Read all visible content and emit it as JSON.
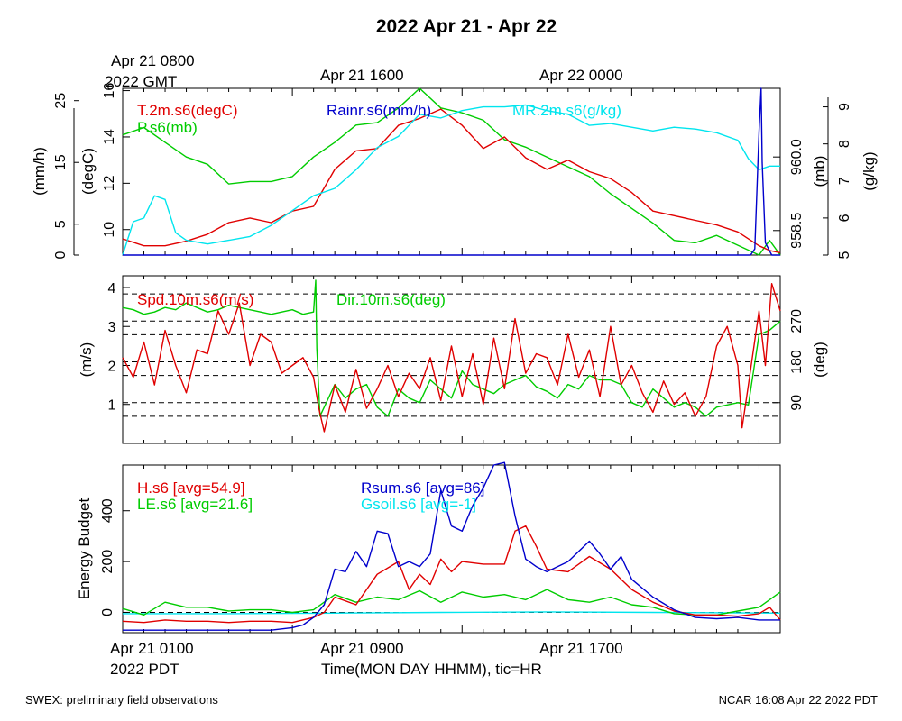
{
  "figure": {
    "title": "2022 Apr 21 - Apr 22",
    "top_time_labels": [
      {
        "line1": "Apr 21 0800",
        "line2": "2022 GMT"
      },
      {
        "line1": "Apr 21 1600",
        "line2": ""
      },
      {
        "line1": "Apr 22 0000",
        "line2": ""
      }
    ],
    "bottom_time_labels": [
      {
        "line1": "Apr 21 0100",
        "line2": "2022 PDT"
      },
      {
        "line1": "Apr 21 0900",
        "line2": ""
      },
      {
        "line1": "Apr 21 1700",
        "line2": ""
      }
    ],
    "xlabel": "Time(MON DAY HHMM), tic=HR",
    "footer_left": "SWEX: preliminary field observations",
    "footer_right": "NCAR 16:08 Apr 22 2022 PDT"
  },
  "chart_data": [
    {
      "type": "line",
      "panel": "state",
      "x_unit": "hours since Apr 21 0100 PDT",
      "xlim": [
        0,
        31
      ],
      "grid": false,
      "axes": {
        "left_outer": {
          "label": "(mm/h)",
          "ticks": [
            0,
            5,
            15,
            25
          ],
          "range": [
            0,
            27
          ]
        },
        "left_inner": {
          "label": "(degC)",
          "ticks": [
            10,
            12,
            14,
            16
          ],
          "range": [
            8.9,
            16.1
          ]
        },
        "right_inner": {
          "label": "(mb)",
          "ticks": [
            "958.5",
            "960.0"
          ],
          "range": [
            958.0,
            961.4
          ]
        },
        "right_outer": {
          "label": "(g/kg)",
          "ticks": [
            5,
            6,
            7,
            8,
            9
          ],
          "range": [
            5.0,
            9.5
          ]
        }
      },
      "series": [
        {
          "name": "T.2m.s6(degC)",
          "axis": "left_inner",
          "color": "#e00000",
          "x": [
            0,
            1,
            2,
            3,
            4,
            5,
            6,
            7,
            8,
            9,
            10,
            11,
            12,
            13,
            14,
            15,
            16,
            17,
            18,
            19,
            20,
            21,
            22,
            23,
            24,
            25,
            26,
            27,
            28,
            29,
            30,
            30.5,
            31
          ],
          "y": [
            9.6,
            9.3,
            9.3,
            9.5,
            9.8,
            10.3,
            10.5,
            10.3,
            10.8,
            11,
            12.6,
            13.4,
            13.5,
            14.5,
            14.8,
            15.2,
            14.5,
            13.5,
            14,
            13.1,
            12.6,
            13,
            12.5,
            12.2,
            11.6,
            10.8,
            10.6,
            10.4,
            10.2,
            9.9,
            9.3,
            9.1,
            9
          ]
        },
        {
          "name": "P.s6(mb)",
          "axis": "right_inner",
          "color": "#00cc00",
          "x": [
            0,
            1,
            2,
            3,
            4,
            5,
            6,
            7,
            8,
            9,
            10,
            11,
            12,
            13,
            14,
            15,
            16,
            17,
            18,
            19,
            20,
            21,
            22,
            23,
            24,
            25,
            26,
            27,
            28,
            29,
            30,
            30.5,
            31
          ],
          "y": [
            960.45,
            960.6,
            960.3,
            960.0,
            959.85,
            959.45,
            959.5,
            959.5,
            959.6,
            960.0,
            960.3,
            960.65,
            960.7,
            961.0,
            961.4,
            961.0,
            960.9,
            960.75,
            960.35,
            960.2,
            960.0,
            959.8,
            959.6,
            959.25,
            958.95,
            958.65,
            958.3,
            958.25,
            958.4,
            958.2,
            958.0,
            958.3,
            958.0
          ]
        },
        {
          "name": "Rainr.s6(mm/h)",
          "axis": "left_outer",
          "color": "#0000cc",
          "x": [
            0,
            29,
            29.6,
            29.8,
            30.0,
            30.1,
            30.15,
            30.3,
            30.6,
            31
          ],
          "y": [
            0,
            0,
            0,
            1,
            20,
            27,
            15,
            2,
            0,
            0
          ]
        },
        {
          "name": "MR.2m.s6(g/kg)",
          "axis": "right_outer",
          "color": "#00e5ee",
          "x": [
            0,
            0.5,
            1,
            1.5,
            2,
            2.5,
            3,
            4,
            5,
            6,
            7,
            8,
            9,
            10,
            11,
            12,
            13,
            14,
            15,
            16,
            17,
            18,
            19,
            20,
            21,
            22,
            23,
            24,
            25,
            26,
            27,
            28,
            29,
            29.5,
            30,
            30.5,
            31
          ],
          "y": [
            5.0,
            5.9,
            6.0,
            6.6,
            6.5,
            5.6,
            5.4,
            5.3,
            5.4,
            5.5,
            5.8,
            6.2,
            6.6,
            6.8,
            7.3,
            7.9,
            8.2,
            8.8,
            8.7,
            8.9,
            9.0,
            9.0,
            9.05,
            8.9,
            8.8,
            8.5,
            8.55,
            8.45,
            8.35,
            8.45,
            8.4,
            8.3,
            8.1,
            7.6,
            7.3,
            7.4,
            7.4
          ]
        }
      ]
    },
    {
      "type": "line",
      "panel": "wind",
      "x_unit": "hours since Apr 21 0100 PDT",
      "xlim": [
        0,
        31
      ],
      "grid": false,
      "reference_lines": {
        "axis": "right",
        "values": [
          60,
          90,
          150,
          180,
          240,
          270,
          330
        ],
        "style": "dashed"
      },
      "axes": {
        "left": {
          "label": "(m/s)",
          "ticks": [
            1,
            2,
            3,
            4
          ],
          "range": [
            0,
            4.3
          ]
        },
        "right": {
          "label": "(deg)",
          "ticks": [
            90,
            180,
            270
          ],
          "range": [
            0,
            370
          ]
        }
      },
      "series": [
        {
          "name": "Spd.10m.s6(m/s)",
          "axis": "left",
          "color": "#e00000",
          "x": [
            0,
            0.5,
            1,
            1.5,
            2,
            2.5,
            3,
            3.5,
            4,
            4.5,
            5,
            5.5,
            6,
            6.5,
            7,
            7.5,
            8,
            8.5,
            9,
            9.25,
            9.5,
            10,
            10.5,
            11,
            11.5,
            12,
            12.5,
            13,
            13.5,
            14,
            14.5,
            15,
            15.5,
            16,
            16.5,
            17,
            17.5,
            18,
            18.5,
            19,
            19.5,
            20,
            20.5,
            21,
            21.5,
            22,
            22.5,
            23,
            23.5,
            24,
            24.5,
            25,
            25.5,
            26,
            26.5,
            27,
            27.5,
            28,
            28.5,
            29,
            29.2,
            29.5,
            30,
            30.3,
            30.6,
            31
          ],
          "y": [
            2.2,
            1.7,
            2.6,
            1.5,
            2.9,
            2,
            1.3,
            2.4,
            2.3,
            3.4,
            2.8,
            3.6,
            2.0,
            2.8,
            2.6,
            1.8,
            2.0,
            2.2,
            1.7,
            0.9,
            0.3,
            1.5,
            0.8,
            1.9,
            0.9,
            1.4,
            2.0,
            1.2,
            1.8,
            1.4,
            2.2,
            1.1,
            2.5,
            1.2,
            2.3,
            1.0,
            2.7,
            1.4,
            3.2,
            1.8,
            2.3,
            2.2,
            1.5,
            2.8,
            1.7,
            2.4,
            1.2,
            3.0,
            1.5,
            2.0,
            1.3,
            0.8,
            1.6,
            1.0,
            1.3,
            0.7,
            1.2,
            2.5,
            3.0,
            2.0,
            0.4,
            1.5,
            3.4,
            2.0,
            4.1,
            3.4
          ]
        },
        {
          "name": "Dir.10m.s6(deg)",
          "axis": "left_marker_scaled_right",
          "color": "#00cc00",
          "x": [
            0,
            0.5,
            1,
            1.5,
            2,
            2.5,
            3,
            3.5,
            4,
            4.5,
            5,
            5.5,
            6,
            6.5,
            7,
            7.5,
            8,
            8.5,
            9,
            9.1,
            9.15,
            9.3,
            9.5,
            10,
            10.5,
            11,
            11.5,
            12,
            12.5,
            13,
            13.5,
            14,
            14.5,
            15,
            15.5,
            16,
            16.5,
            17,
            17.5,
            18,
            18.5,
            19,
            19.5,
            20,
            20.5,
            21,
            21.5,
            22,
            22.5,
            23,
            23.5,
            24,
            24.5,
            25,
            25.5,
            26,
            26.5,
            27,
            27.5,
            28,
            28.5,
            29,
            29.5,
            30,
            30.5,
            31
          ],
          "y": [
            300,
            295,
            285,
            290,
            300,
            295,
            310,
            300,
            290,
            295,
            305,
            300,
            295,
            290,
            285,
            290,
            295,
            285,
            290,
            360,
            210,
            60,
            80,
            130,
            100,
            120,
            130,
            80,
            60,
            120,
            100,
            90,
            140,
            120,
            100,
            160,
            130,
            120,
            110,
            130,
            140,
            150,
            125,
            115,
            100,
            130,
            120,
            150,
            140,
            140,
            130,
            90,
            80,
            120,
            100,
            80,
            90,
            80,
            60,
            80,
            85,
            90,
            85,
            240,
            250,
            270
          ]
        }
      ]
    },
    {
      "type": "line",
      "panel": "energy",
      "x_unit": "hours since Apr 21 0100 PDT",
      "xlim": [
        0,
        31
      ],
      "ylim": [
        -80,
        580
      ],
      "ylabel": "Energy Budget",
      "yticks": [
        0,
        200,
        400
      ],
      "grid": false,
      "reference_lines": {
        "axis": "left",
        "values": [
          0
        ],
        "style": "dashed"
      },
      "series": [
        {
          "name": "H.s6 [avg=54.9]",
          "color": "#e00000",
          "x": [
            0,
            1,
            2,
            3,
            4,
            5,
            6,
            7,
            8,
            9,
            9.5,
            10,
            11,
            12,
            13,
            13.5,
            14,
            14.5,
            15,
            15.5,
            16,
            17,
            18,
            18.5,
            19,
            19.5,
            20,
            21,
            22,
            23,
            24,
            25,
            26,
            27,
            28,
            29,
            30,
            30.5,
            31
          ],
          "y": [
            -35,
            -40,
            -30,
            -35,
            -35,
            -40,
            -35,
            -35,
            -40,
            -20,
            0,
            60,
            30,
            150,
            200,
            90,
            150,
            110,
            210,
            160,
            200,
            190,
            190,
            320,
            340,
            260,
            170,
            160,
            220,
            170,
            90,
            40,
            5,
            -10,
            -10,
            -15,
            -5,
            20,
            -30
          ]
        },
        {
          "name": "LE.s6 [avg=21.6]",
          "color": "#00cc00",
          "x": [
            0,
            1,
            2,
            3,
            4,
            5,
            6,
            7,
            8,
            9,
            10,
            11,
            12,
            13,
            14,
            15,
            16,
            17,
            18,
            19,
            20,
            21,
            22,
            23,
            24,
            25,
            26,
            27,
            28,
            29,
            30,
            30.5,
            31
          ],
          "y": [
            15,
            -10,
            40,
            20,
            20,
            5,
            10,
            10,
            0,
            10,
            70,
            40,
            60,
            50,
            85,
            40,
            80,
            60,
            70,
            50,
            90,
            50,
            40,
            60,
            30,
            20,
            -5,
            -10,
            -10,
            5,
            20,
            50,
            80
          ]
        },
        {
          "name": "Rsum.s6 [avg=86]",
          "color": "#0000cc",
          "x": [
            0,
            1,
            2,
            3,
            4,
            5,
            6,
            7,
            8,
            8.5,
            9,
            9.5,
            10,
            10.5,
            11,
            11.5,
            12,
            12.5,
            13,
            13.5,
            14,
            14.5,
            15,
            15.5,
            16,
            16.5,
            17,
            17.5,
            18,
            18.5,
            19,
            19.5,
            20,
            21,
            22,
            22.5,
            23,
            23.5,
            24,
            25,
            26,
            27,
            28,
            29,
            30,
            31
          ],
          "y": [
            -70,
            -70,
            -70,
            -70,
            -70,
            -70,
            -70,
            -70,
            -60,
            -50,
            -20,
            30,
            170,
            160,
            240,
            180,
            320,
            310,
            180,
            200,
            180,
            230,
            480,
            340,
            320,
            420,
            490,
            580,
            590,
            380,
            210,
            180,
            160,
            200,
            280,
            230,
            170,
            220,
            130,
            60,
            10,
            -20,
            -25,
            -20,
            -30,
            -30
          ]
        },
        {
          "name": "Gsoil.s6 [avg=-1]",
          "color": "#00e5ee",
          "x": [
            0,
            5,
            10,
            15,
            20,
            25,
            31
          ],
          "y": [
            -5,
            -5,
            -3,
            0,
            2,
            0,
            -3
          ]
        }
      ]
    }
  ]
}
